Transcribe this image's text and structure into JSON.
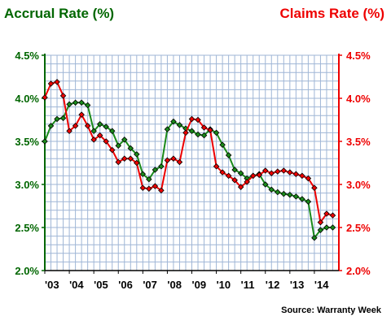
{
  "chart_data": {
    "type": "line",
    "title_left": "Accrual Rate (%)",
    "title_right": "Claims Rate (%)",
    "source": "Source: Warranty Week",
    "colors": {
      "accrual": "#1a8a1a",
      "claims": "#ee0000",
      "grid": "#9fb6d6",
      "axis_left": "#006600",
      "axis_right": "#ee0000"
    },
    "grid": true,
    "ylim": [
      2.0,
      4.5
    ],
    "yticks": [
      2.0,
      2.5,
      3.0,
      3.5,
      4.0,
      4.5
    ],
    "ytick_labels_left": [
      "2.0%",
      "2.5%",
      "3.0%",
      "3.5%",
      "4.0%",
      "4.5%"
    ],
    "ytick_labels_right": [
      "2.0%",
      "2.5%",
      "3.0%",
      "3.5%",
      "4.0%",
      "4.5%"
    ],
    "xlim": [
      2003,
      2015
    ],
    "xtick_labels": [
      "'03",
      "'04",
      "'05",
      "'06",
      "'07",
      "'08",
      "'09",
      "'10",
      "'11",
      "'12",
      "'13",
      "'14"
    ],
    "series": [
      {
        "key": "accrual",
        "marker": "diamond",
        "x": [
          2003.0,
          2003.25,
          2003.5,
          2003.75,
          2004.0,
          2004.25,
          2004.5,
          2004.75,
          2005.0,
          2005.25,
          2005.5,
          2005.75,
          2006.0,
          2006.25,
          2006.5,
          2006.75,
          2007.0,
          2007.25,
          2007.5,
          2007.75,
          2008.0,
          2008.25,
          2008.5,
          2008.75,
          2009.0,
          2009.25,
          2009.5,
          2009.75,
          2010.0,
          2010.25,
          2010.5,
          2010.75,
          2011.0,
          2011.25,
          2011.5,
          2011.75,
          2012.0,
          2012.25,
          2012.5,
          2012.75,
          2013.0,
          2013.25,
          2013.5,
          2013.75,
          2014.0,
          2014.25,
          2014.5,
          2014.75
        ],
        "values": [
          3.5,
          3.68,
          3.76,
          3.77,
          3.93,
          3.95,
          3.95,
          3.92,
          3.62,
          3.7,
          3.67,
          3.62,
          3.45,
          3.52,
          3.42,
          3.35,
          3.12,
          3.06,
          3.17,
          3.21,
          3.64,
          3.73,
          3.69,
          3.65,
          3.62,
          3.58,
          3.57,
          3.64,
          3.6,
          3.46,
          3.34,
          3.17,
          3.13,
          3.07,
          3.1,
          3.12,
          3.0,
          2.94,
          2.91,
          2.89,
          2.88,
          2.86,
          2.83,
          2.8,
          2.38,
          2.47,
          2.5,
          2.5
        ]
      },
      {
        "key": "claims",
        "marker": "diamond",
        "x": [
          2003.0,
          2003.25,
          2003.5,
          2003.75,
          2004.0,
          2004.25,
          2004.5,
          2004.75,
          2005.0,
          2005.25,
          2005.5,
          2005.75,
          2006.0,
          2006.25,
          2006.5,
          2006.75,
          2007.0,
          2007.25,
          2007.5,
          2007.75,
          2008.0,
          2008.25,
          2008.5,
          2008.75,
          2009.0,
          2009.25,
          2009.5,
          2009.75,
          2010.0,
          2010.25,
          2010.5,
          2010.75,
          2011.0,
          2011.25,
          2011.5,
          2011.75,
          2012.0,
          2012.25,
          2012.5,
          2012.75,
          2013.0,
          2013.25,
          2013.5,
          2013.75,
          2014.0,
          2014.25,
          2014.5,
          2014.75
        ],
        "values": [
          4.01,
          4.17,
          4.19,
          4.03,
          3.62,
          3.68,
          3.81,
          3.68,
          3.52,
          3.57,
          3.5,
          3.4,
          3.26,
          3.3,
          3.3,
          3.25,
          2.96,
          2.95,
          2.98,
          2.93,
          3.28,
          3.3,
          3.26,
          3.6,
          3.76,
          3.75,
          3.66,
          3.63,
          3.21,
          3.14,
          3.1,
          3.05,
          2.97,
          3.03,
          3.1,
          3.11,
          3.16,
          3.13,
          3.15,
          3.16,
          3.14,
          3.12,
          3.1,
          3.07,
          2.96,
          2.56,
          2.66,
          2.64
        ]
      }
    ]
  }
}
